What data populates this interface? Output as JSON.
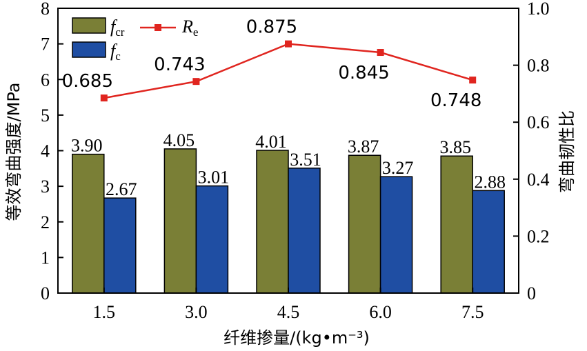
{
  "chart_data": {
    "type": "bar",
    "categories": [
      "1.5",
      "3.0",
      "4.5",
      "6.0",
      "7.5"
    ],
    "xlabel": "纤维掺量/(kg•m⁻³)",
    "ylabel": "等效弯曲强度/MPa",
    "y2label": "弯曲韧性比",
    "ylim": [
      0,
      8
    ],
    "y2lim": [
      0,
      1.0
    ],
    "yticks": [
      "0",
      "1",
      "2",
      "3",
      "4",
      "5",
      "6",
      "7",
      "8"
    ],
    "y2ticks": [
      "0",
      "0.2",
      "0.4",
      "0.6",
      "0.8",
      "1.0"
    ],
    "legend_position": "top-left",
    "series": [
      {
        "name": "f",
        "name_sub": "cr",
        "type": "bar",
        "axis": "left",
        "color": "#7a7f36",
        "values": [
          3.9,
          4.05,
          4.01,
          3.87,
          3.85
        ],
        "labels": [
          "3.90",
          "4.05",
          "4.01",
          "3.87",
          "3.85"
        ]
      },
      {
        "name": "f",
        "name_sub": "c",
        "type": "bar",
        "axis": "left",
        "color": "#1f4ea3",
        "values": [
          2.67,
          3.01,
          3.51,
          3.27,
          2.88
        ],
        "labels": [
          "2.67",
          "3.01",
          "3.51",
          "3.27",
          "2.88"
        ]
      },
      {
        "name": "R",
        "name_sub": "e",
        "type": "line",
        "axis": "right",
        "color": "#e0251f",
        "values": [
          0.685,
          0.743,
          0.875,
          0.845,
          0.748
        ],
        "labels": [
          "0.685",
          "0.743",
          "0.875",
          "0.845",
          "0.748"
        ]
      }
    ]
  }
}
